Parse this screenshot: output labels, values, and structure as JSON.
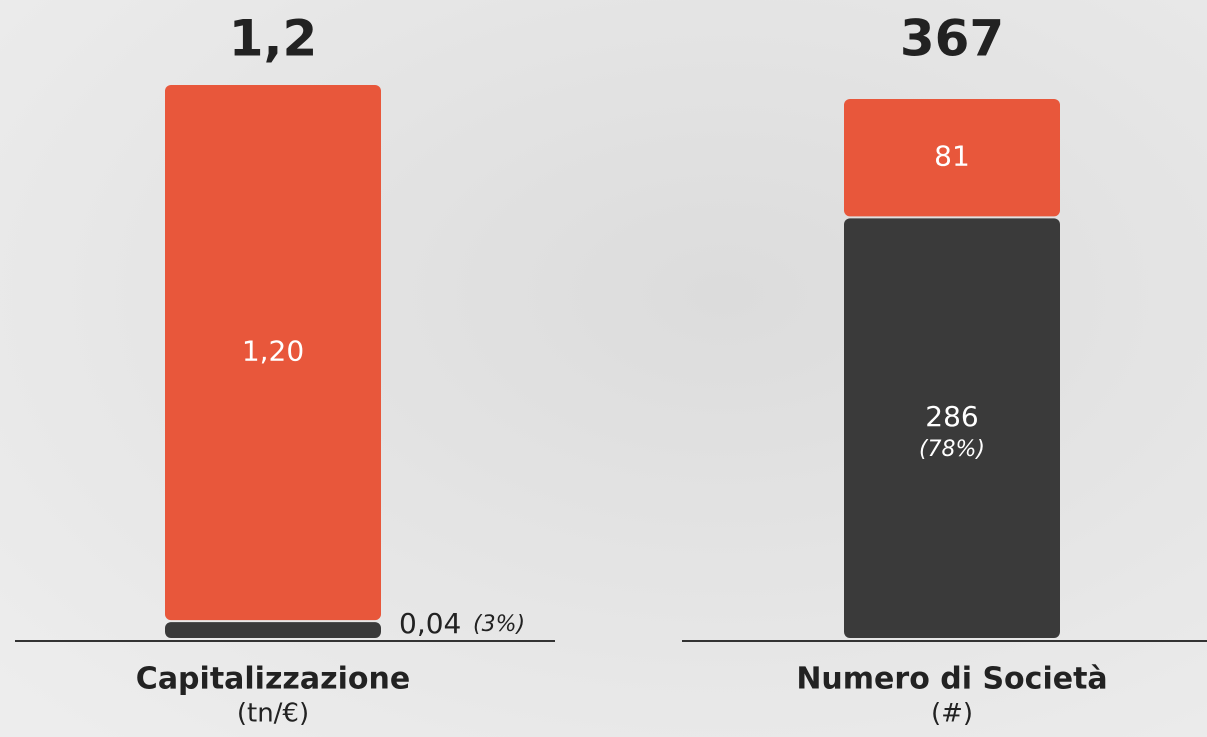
{
  "chart_data": [
    {
      "type": "bar",
      "stacked": true,
      "total": 1.2,
      "total_label": "1,2",
      "categories": [
        "Capitalizzazione"
      ],
      "unit_label": "(tn/€)",
      "series": [
        {
          "color": "#3a3a3a",
          "values": [
            0.04
          ],
          "value_labels": [
            "0,04"
          ],
          "share_labels": [
            "(3%)"
          ]
        },
        {
          "color": "#e8573b",
          "values": [
            1.2
          ],
          "value_labels": [
            "1,20"
          ]
        }
      ]
    },
    {
      "type": "bar",
      "stacked": true,
      "total": 367,
      "categories": [
        "Numero di Società"
      ],
      "unit_label": "(#)",
      "series": [
        {
          "color": "#3a3a3a",
          "values": [
            286
          ],
          "share_labels": [
            "(78%)"
          ]
        },
        {
          "color": "#e8573b",
          "values": [
            81
          ]
        }
      ]
    }
  ]
}
